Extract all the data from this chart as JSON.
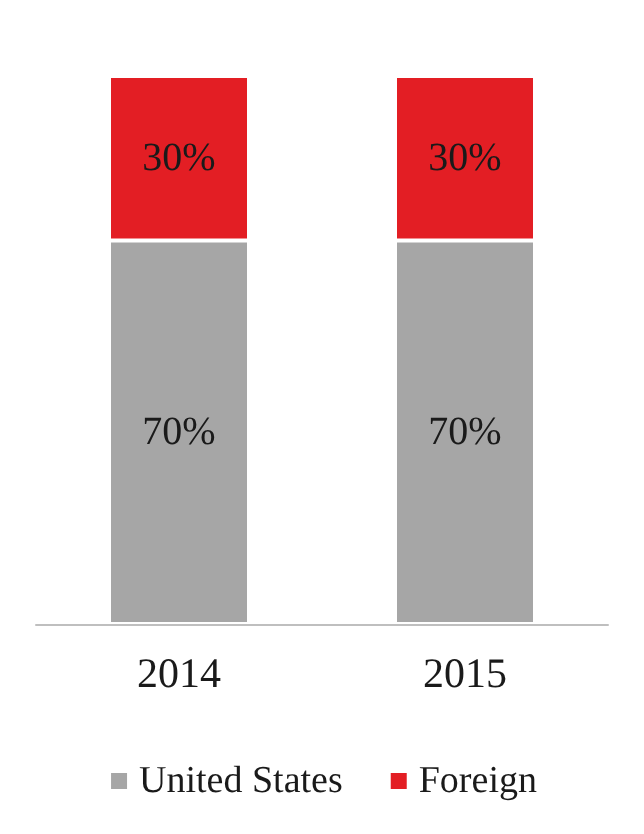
{
  "chart_data": {
    "type": "bar",
    "stacked": true,
    "categories": [
      "2014",
      "2015"
    ],
    "series": [
      {
        "name": "United States",
        "color": "#a6a6a6",
        "values": [
          70,
          70
        ],
        "value_labels": [
          "70%",
          "70%"
        ]
      },
      {
        "name": "Foreign",
        "color": "#e31e24",
        "values": [
          30,
          30
        ],
        "value_labels": [
          "30%",
          "30%"
        ]
      }
    ],
    "tick_labels": "x",
    "grid": false,
    "legend": "bottom"
  }
}
